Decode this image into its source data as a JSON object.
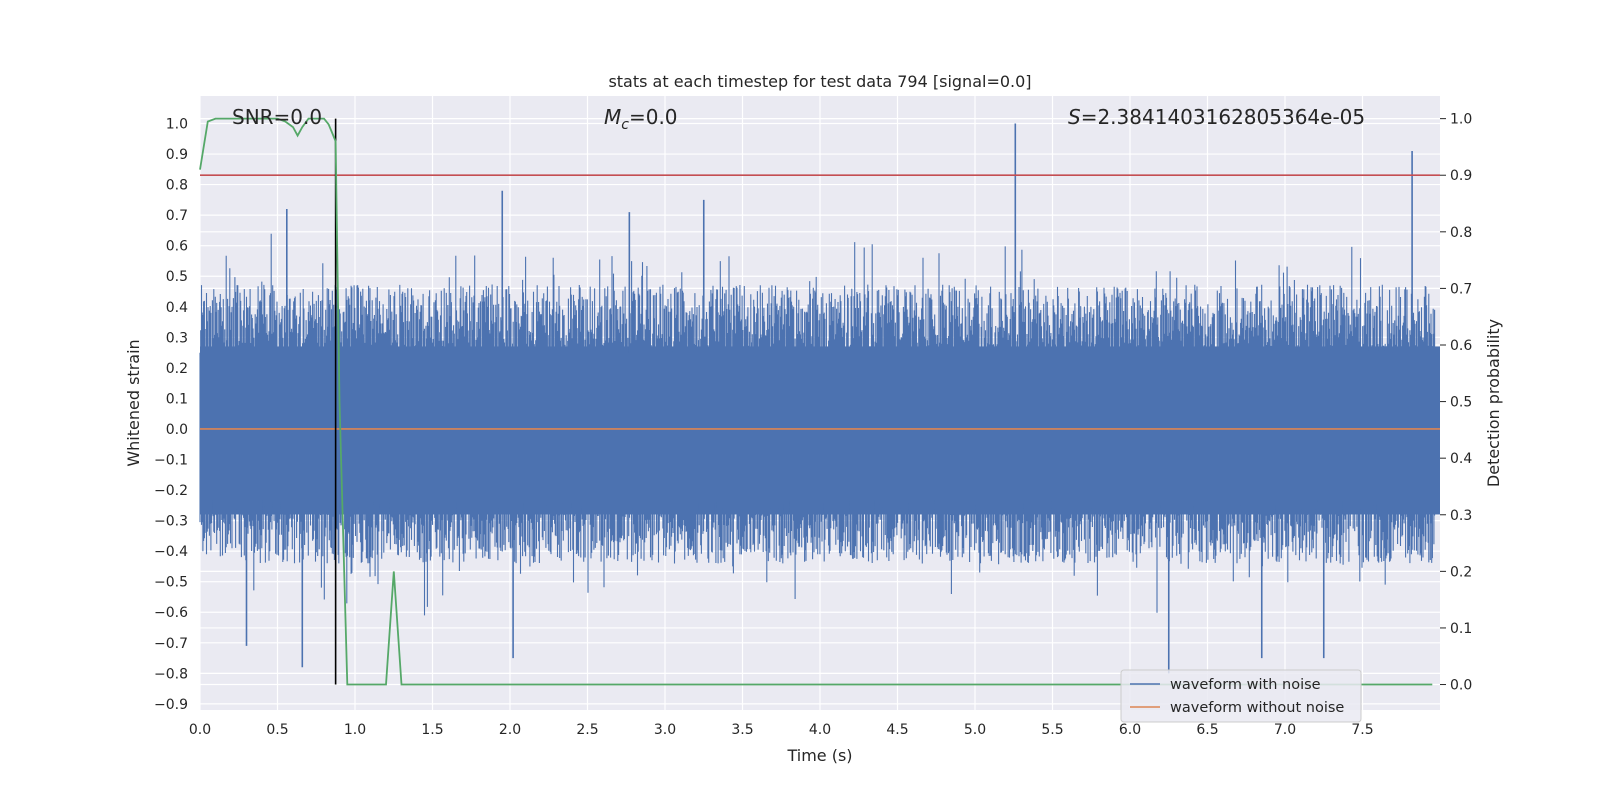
{
  "chart_data": {
    "type": "line",
    "title": "stats at each timestep for test data 794 [signal=0.0]",
    "xlabel": "Time (s)",
    "ylabel_left": "Whitened strain",
    "ylabel_right": "Detection probability",
    "xlim": [
      0.0,
      8.0
    ],
    "ylim_left": [
      -0.92,
      1.09
    ],
    "ylim_right": [
      -0.045,
      1.04
    ],
    "x_ticks": [
      "0.0",
      "0.5",
      "1.0",
      "1.5",
      "2.0",
      "2.5",
      "3.0",
      "3.5",
      "4.0",
      "4.5",
      "5.0",
      "5.5",
      "6.0",
      "6.5",
      "7.0",
      "7.5"
    ],
    "y_ticks_left": [
      "1.0",
      "0.9",
      "0.8",
      "0.7",
      "0.6",
      "0.5",
      "0.4",
      "0.3",
      "0.2",
      "0.1",
      "0.0",
      "−0.1",
      "−0.2",
      "−0.3",
      "−0.4",
      "−0.5",
      "−0.6",
      "−0.7",
      "−0.8",
      "−0.9"
    ],
    "y_ticks_right": [
      "1.0",
      "0.9",
      "0.8",
      "0.7",
      "0.6",
      "0.5",
      "0.4",
      "0.3",
      "0.2",
      "0.1",
      "0.0"
    ],
    "grid": true,
    "annotations": {
      "snr": "SNR=0.0",
      "mc_symbol": "M",
      "mc_subscript": "c",
      "mc_value": "=0.0",
      "s_symbol": "S",
      "s_value": "=2.3841403162805364e-05"
    },
    "legend": {
      "placement": "lower-right",
      "entries": [
        "waveform with noise",
        "waveform without noise"
      ]
    },
    "series": [
      {
        "name": "waveform with noise",
        "color": "#4c72b0",
        "axis": "left",
        "envelope_upper_typical": 0.45,
        "envelope_lower_typical": -0.42,
        "core_band": [
          -0.28,
          0.27
        ],
        "peaks": [
          {
            "x": 5.26,
            "y": 1.0
          },
          {
            "x": 7.82,
            "y": 0.91
          },
          {
            "x": 1.95,
            "y": 0.78
          },
          {
            "x": 3.25,
            "y": 0.75
          },
          {
            "x": 0.56,
            "y": 0.72
          },
          {
            "x": 2.77,
            "y": 0.71
          },
          {
            "x": 6.25,
            "y": -0.8
          },
          {
            "x": 6.85,
            "y": -0.75
          },
          {
            "x": 7.25,
            "y": -0.75
          },
          {
            "x": 0.66,
            "y": -0.78
          },
          {
            "x": 2.02,
            "y": -0.75
          },
          {
            "x": 0.3,
            "y": -0.71
          }
        ]
      },
      {
        "name": "waveform without noise",
        "color": "#dd8452",
        "axis": "left",
        "constant": 0.0
      },
      {
        "name": "detection probability",
        "color": "#55a868",
        "axis": "right",
        "x": [
          0.0,
          0.05,
          0.1,
          0.15,
          0.2,
          0.25,
          0.3,
          0.35,
          0.4,
          0.45,
          0.5,
          0.55,
          0.6,
          0.63,
          0.66,
          0.7,
          0.75,
          0.8,
          0.83,
          0.86,
          0.875,
          0.9,
          0.95,
          1.0,
          1.1,
          1.2,
          1.25,
          1.3,
          1.35,
          1.5,
          2.0,
          3.0,
          4.0,
          5.0,
          6.0,
          7.0,
          7.95
        ],
        "y": [
          0.91,
          0.995,
          1.0,
          1.0,
          1.0,
          1.0,
          1.0,
          1.0,
          1.0,
          1.0,
          1.0,
          0.995,
          0.985,
          0.97,
          0.985,
          1.0,
          1.0,
          1.0,
          0.99,
          0.97,
          0.96,
          0.5,
          0.0,
          0.0,
          0.0,
          0.0,
          0.2,
          0.0,
          0.0,
          0.0,
          0.0,
          0.0,
          0.0,
          0.0,
          0.0,
          0.0,
          0.0
        ]
      }
    ],
    "reference_lines": [
      {
        "color": "#c44e52",
        "axis": "right",
        "orientation": "horizontal",
        "value": 0.9
      },
      {
        "color": "#000000",
        "orientation": "vertical",
        "x": 0.875
      }
    ]
  }
}
